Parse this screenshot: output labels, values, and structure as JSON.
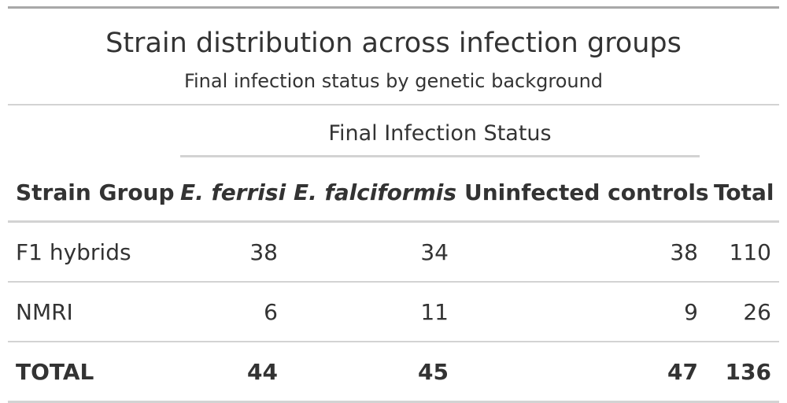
{
  "table": {
    "title": "Strain distribution across infection groups",
    "subtitle": "Final infection status by genetic background",
    "spanner": "Final Infection Status",
    "columns": {
      "strain_group": "Strain Group",
      "e_ferrisi": "E. ferrisi",
      "e_falciformis": "E. falciformis",
      "uninfected": "Uninfected controls",
      "total": "Total"
    },
    "rows": [
      {
        "group": "F1 hybrids",
        "e_ferrisi": "38",
        "e_falciformis": "34",
        "uninfected": "38",
        "total": "110"
      },
      {
        "group": "NMRI",
        "e_ferrisi": "6",
        "e_falciformis": "11",
        "uninfected": "9",
        "total": "26"
      }
    ],
    "totals": {
      "group": "TOTAL",
      "e_ferrisi": "44",
      "e_falciformis": "45",
      "uninfected": "47",
      "total": "136"
    }
  },
  "colors": {
    "text": "#333333",
    "rule_dark": "#a8a8a8",
    "rule_light": "#d3d3d3"
  }
}
